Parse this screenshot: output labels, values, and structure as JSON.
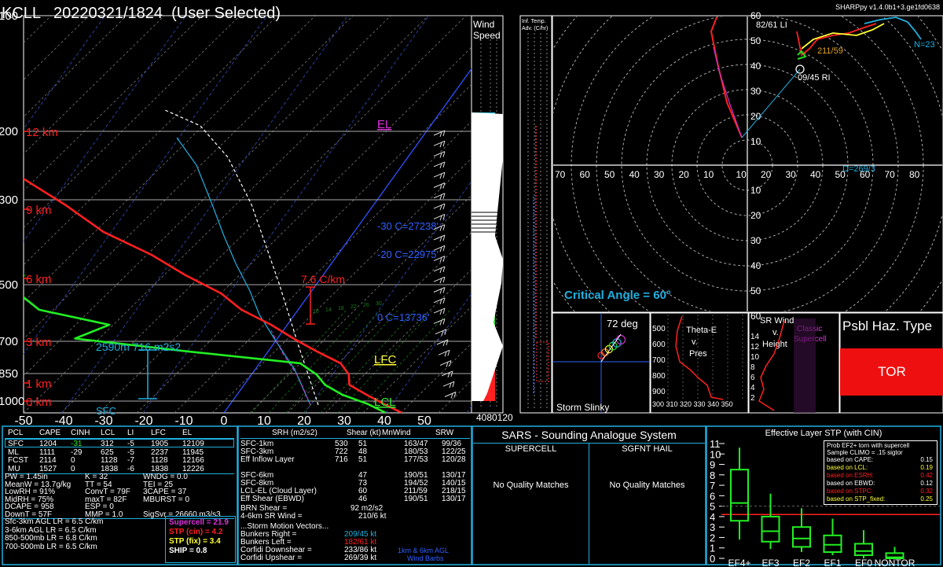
{
  "header": {
    "title": "KCLL   20220321/1824  (User Selected)",
    "version": "SHARPpy v1.4.0b1+3.ge1fd0638"
  },
  "skewt": {
    "pressure_labels": [
      "100",
      "200",
      "300",
      "500",
      "700",
      "850",
      "1000"
    ],
    "height_labels": [
      "12 km",
      "9 km",
      "6 km",
      "3 km",
      "1 km",
      "0 km"
    ],
    "temp_ticks": [
      "-50",
      "-40",
      "-30",
      "-20",
      "-10",
      "0",
      "10",
      "20",
      "30",
      "40",
      "50"
    ],
    "el_label": "EL",
    "lfc_label": "LFC",
    "lcl_label": "LCL",
    "lapse_label": "7.6 C/km",
    "ebwd_label": "2590m  716 m2s2",
    "sfc_label": "SFC",
    "isotherm_labels": [
      "-30 C=27238'",
      "-20 C=22975'",
      "0 C=13736'"
    ],
    "dcape_tick_labels": [
      "10",
      "14",
      "18",
      "22",
      "26",
      "30"
    ]
  },
  "wind_speed_panel": {
    "label": "Wind\nSpeed",
    "label_l1": "Wind",
    "label_l2": "Speed",
    "bottom_ticks": "4080120"
  },
  "inferred_temp_panel": {
    "label_l1": "Inf. Temp.",
    "label_l2": "Adv. (C/hr)"
  },
  "hodograph": {
    "ring_labels": [
      "10",
      "20",
      "30",
      "40",
      "50",
      "60"
    ],
    "x_labels": [
      "70",
      "60",
      "50",
      "40",
      "30",
      "20",
      "10",
      "10",
      "20",
      "30",
      "40",
      "50",
      "60",
      "70",
      "80"
    ],
    "annotations": {
      "ll": "82/61 LI",
      "rr": "211/59",
      "ri": "09/45 RI",
      "n": "N=23",
      "d": "D=269/3"
    },
    "critical_angle": "Critical Angle = 60°"
  },
  "slinky": {
    "label": "Storm Slinky",
    "angle": "72 deg"
  },
  "theta_panel": {
    "title_l1": "Theta-E",
    "title_l2": "v.",
    "title_l3": "Pres",
    "y_ticks": [
      "500",
      "600",
      "700",
      "800",
      "900"
    ],
    "x_ticks": "300 310 320 330 340 350"
  },
  "wind_v_height": {
    "title_l1": "SR Wind",
    "title_l2": "v.",
    "title_l3": "Height",
    "supercell_l1": "Classic",
    "supercell_l2": "Supercell",
    "y_ticks": [
      "14",
      "12",
      "10",
      "8",
      "6",
      "4",
      "2"
    ]
  },
  "hazard": {
    "title": "Psbl Haz. Type",
    "value": "TOR"
  },
  "parcels": {
    "headers": [
      "PCL",
      "CAPE",
      "CINH",
      "LCL",
      "LI",
      "LFC",
      "EL"
    ],
    "rows": [
      [
        "SFC",
        "1204",
        "-31",
        "312",
        "-5",
        "1905",
        "12109"
      ],
      [
        "ML",
        "1111",
        "-29",
        "625",
        "-5",
        "2237",
        "11945"
      ],
      [
        "FCST",
        "2114",
        "0",
        "1128",
        "-7",
        "1128",
        "12166"
      ],
      [
        "MU",
        "1527",
        "0",
        "1838",
        "-6",
        "1838",
        "12226"
      ]
    ]
  },
  "indices": {
    "col1": [
      "PW = 1.45in",
      "MeanW = 13.7g/kg",
      "LowRH = 91%",
      "MidRH = 75%",
      "DCAPE = 958",
      "DownT = 57F"
    ],
    "col2": [
      "K = 32",
      "TT = 54",
      "ConvT = 79F",
      "maxT = 82F",
      "ESP = 0",
      "MMP = 1.0"
    ],
    "col3": [
      "WNDG = 0.0",
      "TEI = 25",
      "3CAPE = 37",
      "MBURST = 0",
      "",
      "SigSvr = 26660 m3/s3"
    ]
  },
  "lapse_rates": [
    "Sfc-3km AGL LR = 6.5 C/km",
    "3-6km AGL LR = 6.5 C/km",
    "850-500mb LR = 6.8 C/km",
    "700-500mb LR = 6.5 C/km"
  ],
  "composites": [
    "Supercell = 21.9",
    "STP (cin) = 4.2",
    "STP (fix) = 3.4",
    "SHIP = 0.8"
  ],
  "kinematics": {
    "headers": [
      "SRH (m2/s2)",
      "Shear (kt)",
      "MnWind",
      "SRW"
    ],
    "rows": [
      [
        "SFC-1km",
        "530",
        "51",
        "163/47",
        "99/36"
      ],
      [
        "SFC-3km",
        "722",
        "48",
        "180/53",
        "122/25"
      ],
      [
        "Eff Inflow Layer",
        "716",
        "51",
        "177/53",
        "120/28"
      ],
      [
        "",
        "",
        "",
        "",
        ""
      ],
      [
        "SFC-6km",
        "",
        "47",
        "190/51",
        "130/17"
      ],
      [
        "SFC-8km",
        "",
        "73",
        "194/52",
        "140/15"
      ],
      [
        "LCL-EL (Cloud Layer)",
        "",
        "60",
        "211/59",
        "218/15"
      ],
      [
        "Eff Shear (EBWD)",
        "",
        "46",
        "190/51",
        "130/17"
      ]
    ],
    "brn_shear": "BRN Shear =",
    "brn_shear_val": "92 m2/s2",
    "sr_wind": "4-6km SR Wind =",
    "sr_wind_val": "210/6 kt",
    "vectors_title": "...Storm Motion Vectors...",
    "vectors": [
      [
        "Bunkers Right =",
        "209/45 kt"
      ],
      [
        "Bunkers Left =",
        "182/61 kt"
      ],
      [
        "Corfidi Downshear =",
        "233/86 kt"
      ],
      [
        "Corfidi Upshear =",
        "269/39 kt"
      ]
    ],
    "barb_label_l1": "1km & 6km AGL",
    "barb_label_l2": "Wind Barbs"
  },
  "sars": {
    "title": "SARS - Sounding Analogue System",
    "supercell": "SUPERCELL",
    "hail": "SGFNT HAIL",
    "supercell_match": "No Quality Matches",
    "hail_match": "No Quality Matches"
  },
  "stp": {
    "title": "Effective Layer STP (with CIN)",
    "prob_l1": "Prob EF2+ torn with supercell",
    "prob_l2": "Sample CLIMO = .15 sigtor",
    "probs": [
      [
        "based on CAPE:",
        "0.15"
      ],
      [
        "based on LCL:",
        "0.19"
      ],
      [
        "based on ESRH:",
        "0.42"
      ],
      [
        "based on EBWD:",
        "0.12"
      ],
      [
        "based on STPC:",
        "0.32"
      ],
      [
        "based on STP_fixed:",
        "0.25"
      ]
    ],
    "y_ticks": [
      "11",
      "10",
      "9",
      "8",
      "7",
      "6",
      "5",
      "4",
      "3",
      "2",
      "1",
      "0"
    ],
    "categories": [
      "EF4+",
      "EF3",
      "EF2",
      "EF1",
      "EF0",
      "NONTOR"
    ]
  },
  "chart_data": [
    {
      "type": "line",
      "title": "KCLL   20220321/1824  (User Selected)",
      "xlabel": "Temperature (C)",
      "xlim": [
        -50,
        50
      ],
      "ylabel": "Pressure (mb)",
      "ylim": [
        1000,
        100
      ],
      "series": [
        {
          "name": "Temperature",
          "points": [
            [
              1000,
              22
            ],
            [
              950,
              19
            ],
            [
              900,
              16
            ],
            [
              850,
              13
            ],
            [
              800,
              12
            ],
            [
              750,
              10
            ],
            [
              700,
              6
            ],
            [
              650,
              2
            ],
            [
              600,
              -2
            ],
            [
              550,
              -7
            ],
            [
              500,
              -11
            ],
            [
              450,
              -17
            ],
            [
              400,
              -23
            ],
            [
              350,
              -31
            ],
            [
              300,
              -38
            ],
            [
              250,
              -47
            ],
            [
              200,
              -57
            ],
            [
              180,
              -55
            ]
          ]
        },
        {
          "name": "Dewpoint",
          "points": [
            [
              1000,
              20
            ],
            [
              950,
              17
            ],
            [
              900,
              13
            ],
            [
              850,
              10
            ],
            [
              800,
              8
            ],
            [
              750,
              5
            ],
            [
              700,
              -10
            ],
            [
              650,
              -25
            ],
            [
              600,
              -22
            ],
            [
              550,
              -32
            ],
            [
              500,
              -36
            ],
            [
              450,
              -37
            ],
            [
              400,
              -40
            ],
            [
              350,
              -50
            ],
            [
              300,
              -55
            ],
            [
              250,
              -63
            ],
            [
              200,
              -73
            ],
            [
              180,
              -78
            ]
          ]
        }
      ]
    },
    {
      "type": "bar",
      "title": "Effective Layer STP (with CIN)",
      "categories": [
        "EF4+",
        "EF3",
        "EF2",
        "EF1",
        "EF0",
        "NONTOR"
      ],
      "ylim": [
        0,
        11
      ],
      "series": [
        {
          "name": "whisker_low",
          "values": [
            1.8,
            0.9,
            0.6,
            0.3,
            0.0,
            0.0
          ]
        },
        {
          "name": "q1",
          "values": [
            3.6,
            1.6,
            1.1,
            0.6,
            0.3,
            0.0
          ]
        },
        {
          "name": "median",
          "values": [
            5.3,
            2.6,
            1.9,
            1.3,
            0.7,
            0.1
          ]
        },
        {
          "name": "q3",
          "values": [
            8.5,
            4.0,
            3.0,
            2.2,
            1.4,
            0.5
          ]
        },
        {
          "name": "whisker_high",
          "values": [
            10.6,
            6.2,
            4.8,
            3.8,
            2.7,
            1.1
          ]
        }
      ],
      "reference_line": 4.2
    }
  ]
}
